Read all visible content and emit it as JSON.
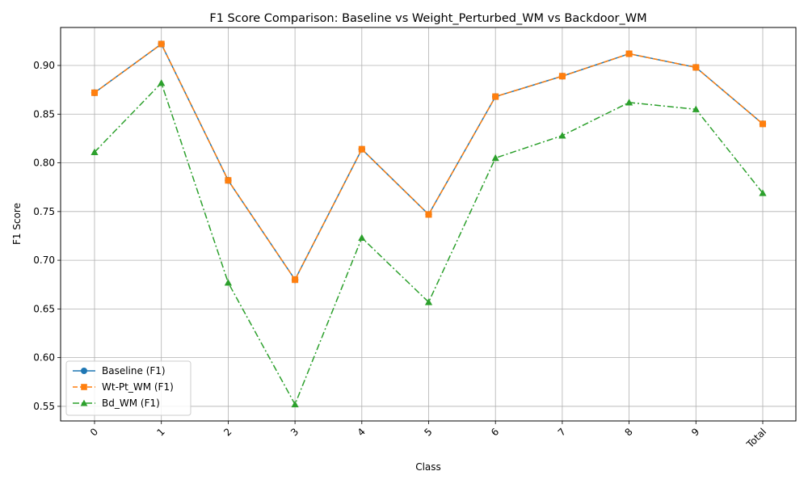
{
  "chart_data": {
    "type": "line",
    "title": "F1 Score Comparison: Baseline vs Weight_Perturbed_WM vs Backdoor_WM",
    "xlabel": "Class",
    "ylabel": "F1 Score",
    "categories": [
      "0",
      "1",
      "2",
      "3",
      "4",
      "5",
      "6",
      "7",
      "8",
      "9",
      "Total"
    ],
    "ylim": [
      0.535,
      0.939
    ],
    "yticks": [
      0.55,
      0.6,
      0.65,
      0.7,
      0.75,
      0.8,
      0.85,
      0.9
    ],
    "grid": true,
    "legend_position": "lower-left",
    "series": [
      {
        "name": "Baseline (F1)",
        "color": "#1f77b4",
        "marker": "circle",
        "line_style": "solid",
        "values": [
          0.872,
          0.922,
          0.782,
          0.68,
          0.814,
          0.747,
          0.868,
          0.889,
          0.912,
          0.898,
          0.84
        ]
      },
      {
        "name": "Wt-Pt_WM (F1)",
        "color": "#ff7f0e",
        "marker": "square",
        "line_style": "dashed",
        "values": [
          0.872,
          0.922,
          0.782,
          0.68,
          0.814,
          0.747,
          0.868,
          0.889,
          0.912,
          0.898,
          0.84
        ]
      },
      {
        "name": "Bd_WM (F1)",
        "color": "#2ca02c",
        "marker": "triangle",
        "line_style": "dashdot",
        "values": [
          0.811,
          0.882,
          0.677,
          0.552,
          0.723,
          0.657,
          0.805,
          0.828,
          0.862,
          0.855,
          0.769
        ]
      }
    ]
  }
}
